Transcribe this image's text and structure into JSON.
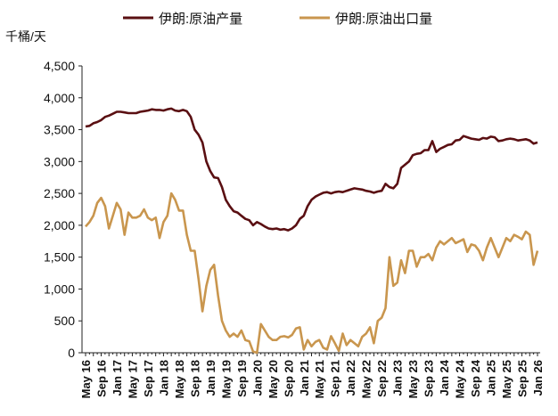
{
  "chart_data": {
    "type": "line",
    "title": "",
    "ylabel": "千桶/天",
    "xlabel": "",
    "ylim": [
      0,
      4500
    ],
    "yticks": [
      0,
      500,
      1000,
      1500,
      2000,
      2500,
      3000,
      3500,
      4000,
      4500
    ],
    "ytick_labels": [
      "0",
      "500",
      "1,000",
      "1,500",
      "2,000",
      "2,500",
      "3,000",
      "3,500",
      "4,000",
      "4,500"
    ],
    "x_start": "2016-05",
    "x_end": "2026-01",
    "x_frequency": "monthly",
    "xtick_labels": [
      "May 16",
      "Sep 16",
      "Jan 17",
      "May 17",
      "Sep 17",
      "Jan 18",
      "May 18",
      "Sep 18",
      "Jan 19",
      "May 19",
      "Sep 19",
      "Jan 20",
      "May 20",
      "Sep 20",
      "Jan 21",
      "May 21",
      "Sep 21",
      "Jan 22",
      "May 22",
      "Sep 22",
      "Jan 23",
      "May 23",
      "Sep 23",
      "Jan 24",
      "May 24",
      "Sep 24",
      "Jan 25",
      "May 25",
      "Sep 25",
      "Jan 26"
    ],
    "grid": false,
    "legend_placement": "top",
    "series": [
      {
        "name": "伊朗:原油产量",
        "color": "#5a0f12",
        "values": [
          3550,
          3560,
          3600,
          3620,
          3650,
          3700,
          3720,
          3750,
          3780,
          3780,
          3770,
          3760,
          3760,
          3760,
          3780,
          3790,
          3800,
          3820,
          3810,
          3810,
          3800,
          3820,
          3830,
          3800,
          3790,
          3810,
          3790,
          3700,
          3500,
          3420,
          3300,
          3000,
          2850,
          2750,
          2740,
          2600,
          2400,
          2300,
          2220,
          2200,
          2150,
          2100,
          2080,
          2000,
          2050,
          2020,
          1980,
          1950,
          1940,
          1950,
          1930,
          1940,
          1920,
          1950,
          2000,
          2100,
          2150,
          2300,
          2400,
          2450,
          2480,
          2510,
          2520,
          2500,
          2520,
          2530,
          2520,
          2540,
          2560,
          2580,
          2570,
          2560,
          2540,
          2530,
          2510,
          2530,
          2540,
          2650,
          2600,
          2580,
          2650,
          2900,
          2950,
          3000,
          3100,
          3120,
          3130,
          3180,
          3180,
          3320,
          3150,
          3200,
          3230,
          3260,
          3270,
          3330,
          3340,
          3400,
          3380,
          3360,
          3350,
          3340,
          3370,
          3360,
          3390,
          3380,
          3320,
          3330,
          3350,
          3360,
          3350,
          3330,
          3340,
          3350,
          3330,
          3280,
          3300
        ]
      },
      {
        "name": "伊朗:原油出口量",
        "color": "#c9964e",
        "values": [
          1980,
          2050,
          2150,
          2350,
          2430,
          2300,
          1950,
          2150,
          2350,
          2250,
          1850,
          2200,
          2120,
          2120,
          2150,
          2250,
          2120,
          2080,
          2120,
          1800,
          2050,
          2150,
          2500,
          2400,
          2230,
          2230,
          1850,
          1600,
          1600,
          1150,
          650,
          1050,
          1300,
          1380,
          900,
          500,
          350,
          250,
          300,
          250,
          350,
          200,
          180,
          20,
          0,
          450,
          350,
          250,
          200,
          200,
          250,
          260,
          240,
          280,
          380,
          400,
          50,
          200,
          100,
          170,
          200,
          80,
          50,
          260,
          150,
          30,
          300,
          120,
          200,
          150,
          100,
          250,
          300,
          400,
          150,
          500,
          550,
          700,
          1500,
          1050,
          1100,
          1450,
          1250,
          1600,
          1600,
          1350,
          1500,
          1500,
          1550,
          1450,
          1650,
          1750,
          1700,
          1750,
          1800,
          1720,
          1750,
          1780,
          1580,
          1700,
          1680,
          1600,
          1450,
          1650,
          1800,
          1650,
          1500,
          1650,
          1800,
          1750,
          1850,
          1820,
          1780,
          1900,
          1850,
          1380,
          1600
        ]
      }
    ]
  }
}
